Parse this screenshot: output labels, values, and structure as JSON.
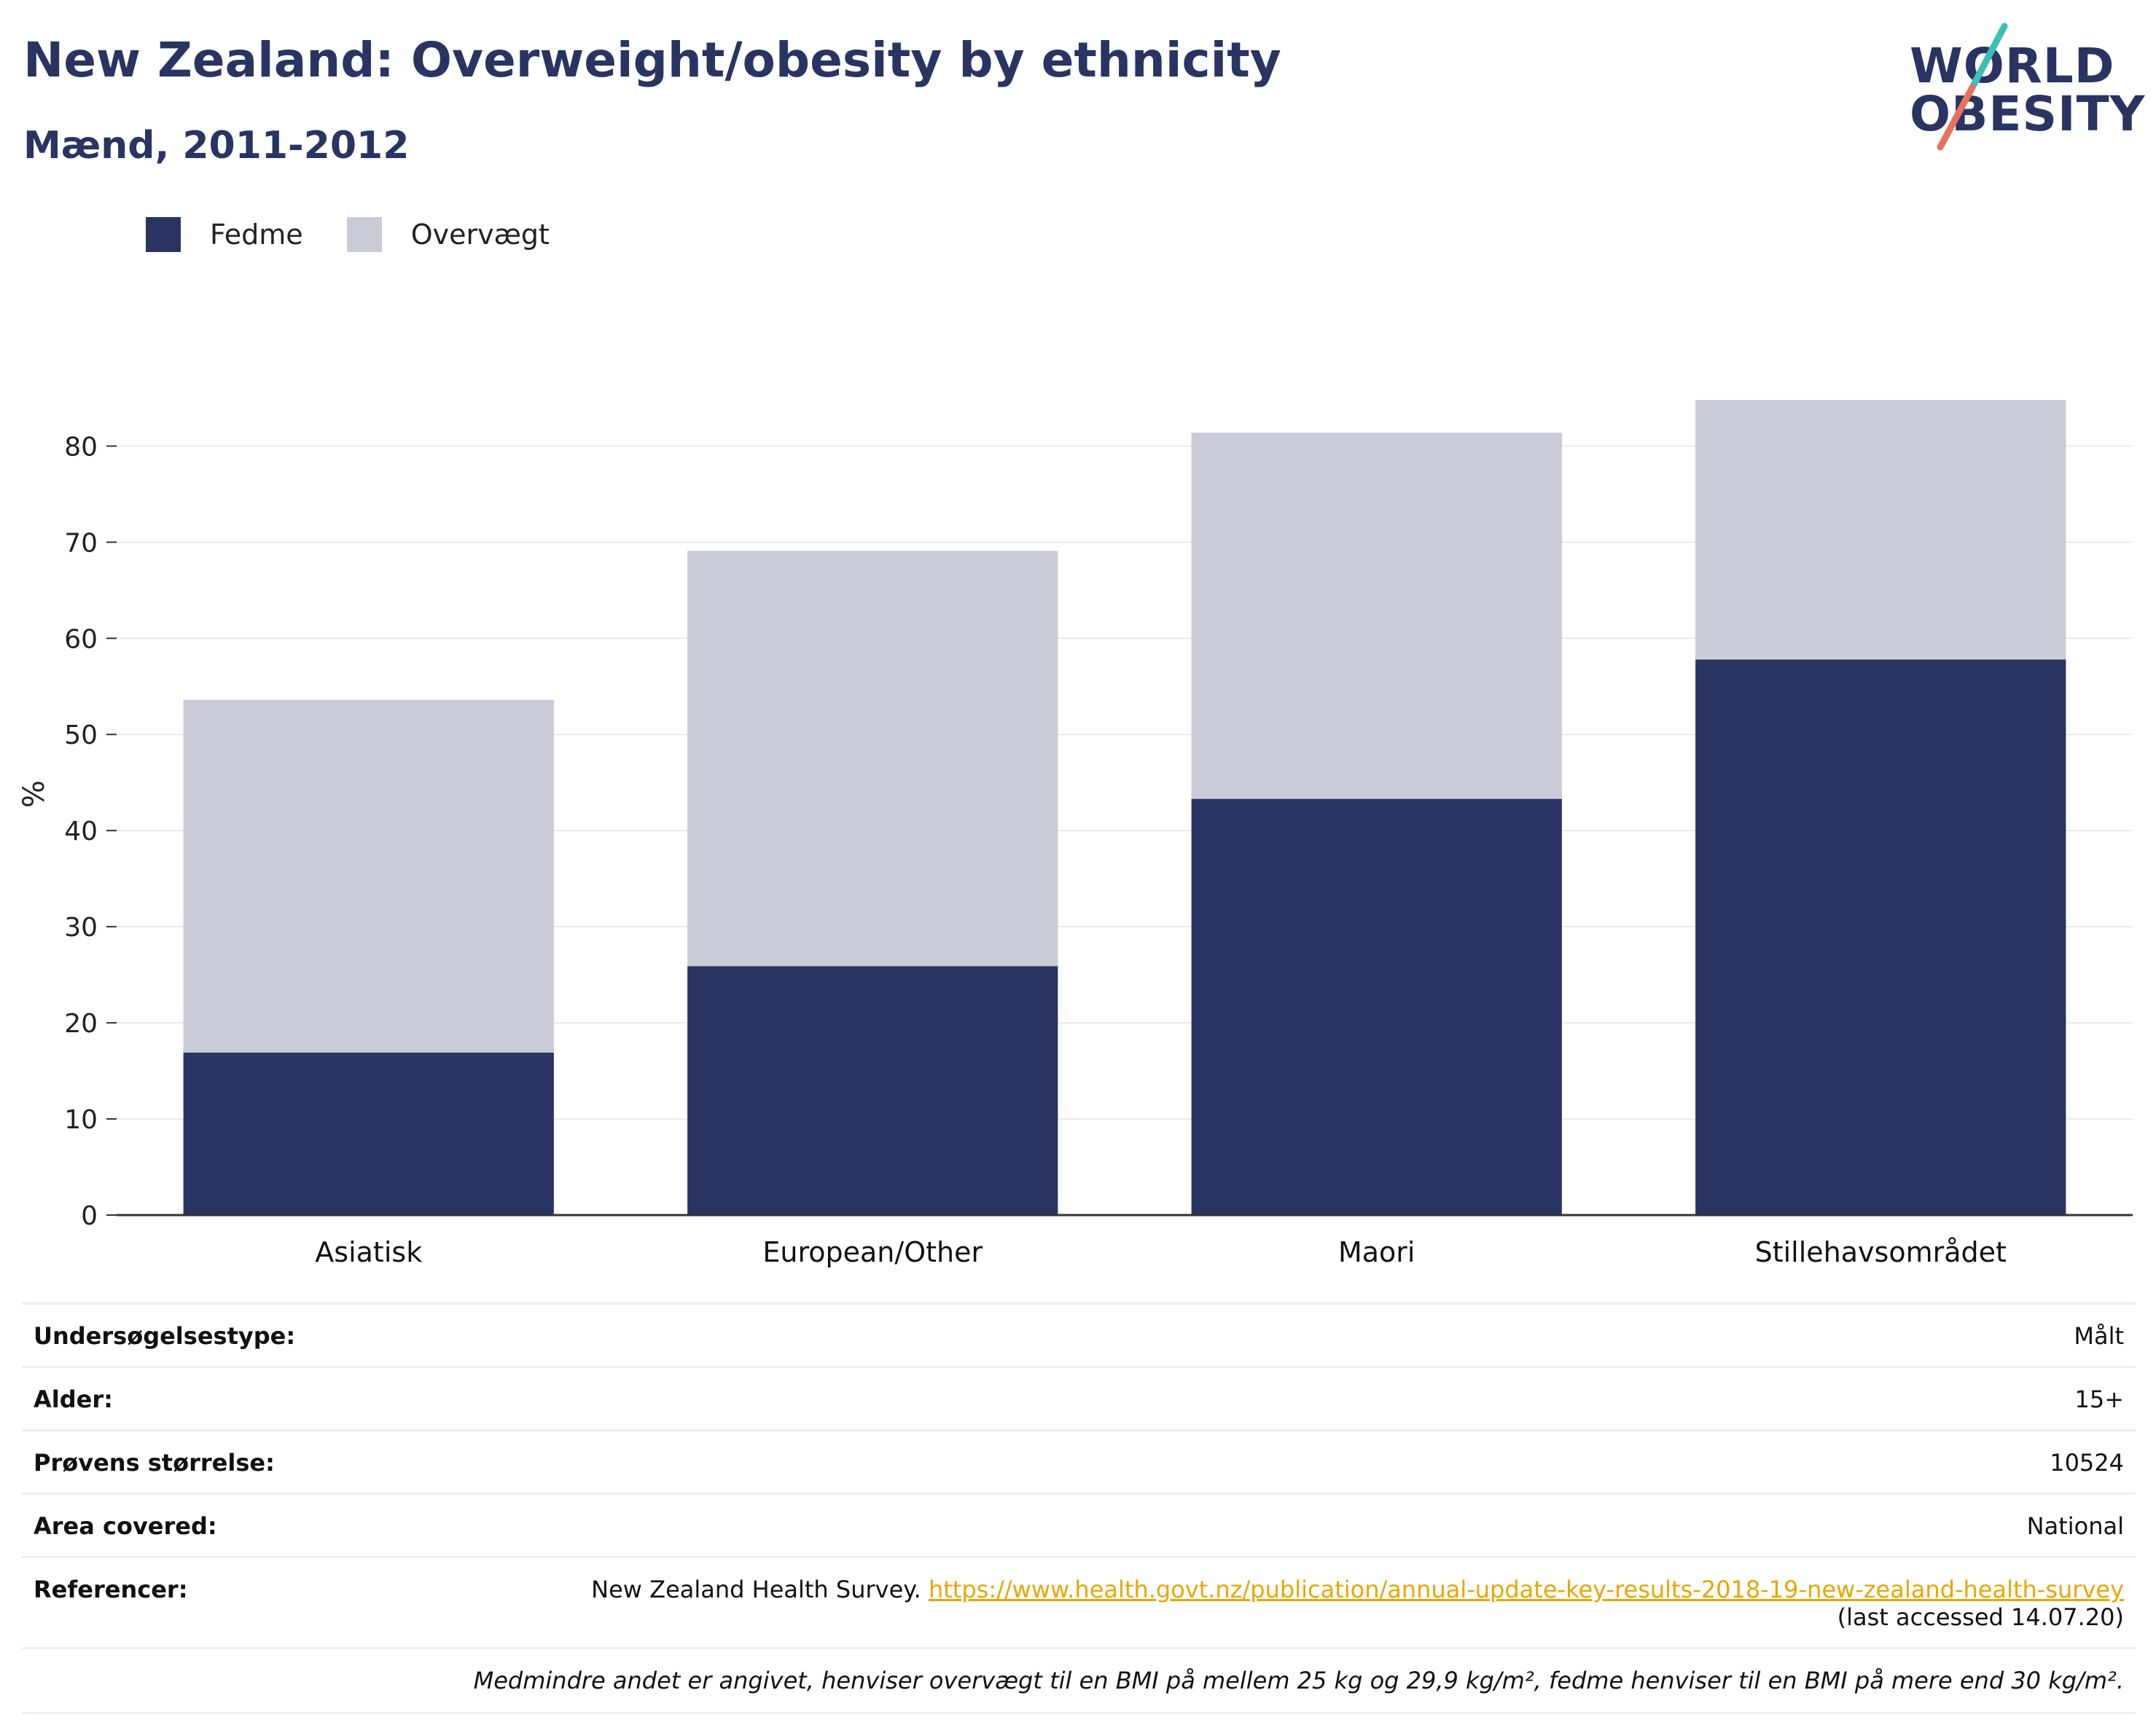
{
  "header": {
    "title": "New Zealand: Overweight/obesity by ethnicity",
    "subtitle": "Mænd, 2011-2012"
  },
  "logo": {
    "line1": "WORLD",
    "line2": "OBESITY"
  },
  "colors": {
    "fedme": "#293462",
    "overvaegt": "#c9cbd6",
    "title": "#293462",
    "link": "#e9a602"
  },
  "legend": [
    {
      "label": "Fedme",
      "color": "#293462"
    },
    {
      "label": "Overvægt",
      "color": "#c9cbd6"
    }
  ],
  "chart_data": {
    "type": "bar",
    "stacked": true,
    "categories": [
      "Asiatisk",
      "European/Other",
      "Maori",
      "Stillehavsområdet"
    ],
    "series": [
      {
        "name": "Fedme",
        "values": [
          16.9,
          25.9,
          43.3,
          57.8
        ]
      },
      {
        "name": "Overvægt",
        "values": [
          36.7,
          43.2,
          38.1,
          27.0
        ]
      }
    ],
    "ylabel": "%",
    "ylim": [
      0,
      87
    ],
    "yticks": [
      0,
      10,
      20,
      30,
      40,
      50,
      60,
      70,
      80
    ],
    "grid": true,
    "legend_position": "top-left"
  },
  "info": {
    "rows": [
      {
        "key": "Undersøgelsestype:",
        "value": "Målt"
      },
      {
        "key": "Alder:",
        "value": "15+"
      },
      {
        "key": "Prøvens størrelse:",
        "value": "10524"
      },
      {
        "key": "Area covered:",
        "value": "National"
      }
    ],
    "reference": {
      "key": "Referencer:",
      "text": "New Zealand Health Survey. ",
      "link": "https://www.health.govt.nz/publication/annual-update-key-results-2018-19-new-zealand-health-survey",
      "accessed": "(last accessed 14.07.20)"
    },
    "note": "Medmindre andet er angivet, henviser overvægt til en BMI på mellem 25 kg og 29,9 kg/m², fedme henviser til en BMI på mere end 30 kg/m²."
  }
}
